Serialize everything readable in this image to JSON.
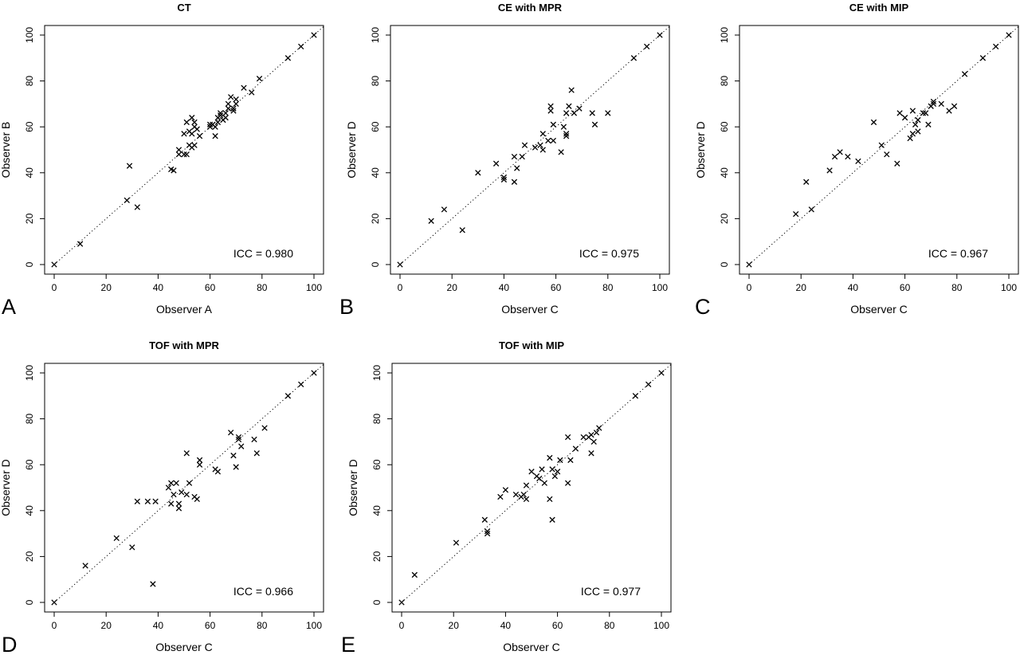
{
  "chart_data": [
    {
      "type": "scatter",
      "panel_letter": "A",
      "title": "CT",
      "xlabel": "Observer A",
      "ylabel": "Observer B",
      "xlim": [
        0,
        100
      ],
      "ylim": [
        0,
        100
      ],
      "xticks": [
        0,
        20,
        40,
        60,
        80,
        100
      ],
      "yticks": [
        0,
        20,
        40,
        60,
        80,
        100
      ],
      "marker": "x",
      "grid": false,
      "reference_line": "identity (dotted)",
      "annotation": "ICC =  0.980",
      "points": [
        [
          0,
          0
        ],
        [
          10,
          9
        ],
        [
          28,
          28
        ],
        [
          29,
          43
        ],
        [
          32,
          25
        ],
        [
          45,
          41.5
        ],
        [
          46,
          41
        ],
        [
          48,
          48
        ],
        [
          48,
          50
        ],
        [
          50,
          57
        ],
        [
          50,
          48
        ],
        [
          51,
          62
        ],
        [
          51,
          48
        ],
        [
          52,
          52
        ],
        [
          52,
          58
        ],
        [
          53,
          51
        ],
        [
          53,
          57
        ],
        [
          53,
          64
        ],
        [
          54,
          52
        ],
        [
          54,
          60
        ],
        [
          54,
          62
        ],
        [
          55,
          59
        ],
        [
          56,
          56
        ],
        [
          60,
          61
        ],
        [
          60,
          60
        ],
        [
          61,
          61
        ],
        [
          62,
          56
        ],
        [
          62,
          60
        ],
        [
          63,
          62
        ],
        [
          63,
          64
        ],
        [
          64,
          65
        ],
        [
          64,
          66
        ],
        [
          65,
          63
        ],
        [
          66,
          64
        ],
        [
          66,
          66
        ],
        [
          67,
          68
        ],
        [
          67,
          70
        ],
        [
          68,
          73
        ],
        [
          69,
          67
        ],
        [
          69,
          68
        ],
        [
          70,
          70
        ],
        [
          70,
          72
        ],
        [
          73,
          77
        ],
        [
          76,
          75
        ],
        [
          79,
          81
        ],
        [
          90,
          90
        ],
        [
          95,
          95
        ],
        [
          100,
          100
        ]
      ]
    },
    {
      "type": "scatter",
      "panel_letter": "B",
      "title": "CE with MPR",
      "xlabel": "Observer C",
      "ylabel": "Observer D",
      "xlim": [
        0,
        100
      ],
      "ylim": [
        0,
        100
      ],
      "xticks": [
        0,
        20,
        40,
        60,
        80,
        100
      ],
      "yticks": [
        0,
        20,
        40,
        60,
        80,
        100
      ],
      "marker": "x",
      "grid": false,
      "reference_line": "identity (dotted)",
      "annotation": "ICC =  0.975",
      "points": [
        [
          0,
          0
        ],
        [
          12,
          19
        ],
        [
          17,
          24
        ],
        [
          24,
          15
        ],
        [
          30,
          40
        ],
        [
          37,
          44
        ],
        [
          40,
          38
        ],
        [
          40,
          37
        ],
        [
          44,
          47
        ],
        [
          44,
          36
        ],
        [
          45,
          42
        ],
        [
          47,
          47
        ],
        [
          48,
          52
        ],
        [
          52,
          51
        ],
        [
          54,
          52
        ],
        [
          55,
          57
        ],
        [
          55,
          50
        ],
        [
          57,
          54
        ],
        [
          58,
          69
        ],
        [
          58,
          67
        ],
        [
          59,
          61
        ],
        [
          59,
          54
        ],
        [
          62,
          49
        ],
        [
          63,
          60
        ],
        [
          64,
          66
        ],
        [
          64,
          56
        ],
        [
          64,
          57
        ],
        [
          65,
          69
        ],
        [
          66,
          76
        ],
        [
          67,
          66
        ],
        [
          69,
          68
        ],
        [
          74,
          66
        ],
        [
          75,
          61
        ],
        [
          80,
          66
        ],
        [
          90,
          90
        ],
        [
          95,
          95
        ],
        [
          100,
          100
        ]
      ]
    },
    {
      "type": "scatter",
      "panel_letter": "C",
      "title": "CE with MIP",
      "xlabel": "Observer C",
      "ylabel": "Observer D",
      "xlim": [
        0,
        100
      ],
      "ylim": [
        0,
        100
      ],
      "xticks": [
        0,
        20,
        40,
        60,
        80,
        100
      ],
      "yticks": [
        0,
        20,
        40,
        60,
        80,
        100
      ],
      "marker": "x",
      "grid": false,
      "reference_line": "identity (dotted)",
      "annotation": "ICC =  0.967",
      "points": [
        [
          0,
          0
        ],
        [
          18,
          22
        ],
        [
          22,
          36
        ],
        [
          24,
          24
        ],
        [
          31,
          41
        ],
        [
          33,
          47
        ],
        [
          35,
          49
        ],
        [
          38,
          47
        ],
        [
          42,
          45
        ],
        [
          48,
          62
        ],
        [
          51,
          52
        ],
        [
          53,
          48
        ],
        [
          57,
          44
        ],
        [
          58,
          66
        ],
        [
          60,
          64
        ],
        [
          62,
          55
        ],
        [
          63,
          57
        ],
        [
          63,
          67
        ],
        [
          64,
          61
        ],
        [
          65,
          58
        ],
        [
          65,
          63
        ],
        [
          67,
          66
        ],
        [
          68,
          66
        ],
        [
          69,
          61
        ],
        [
          70,
          69
        ],
        [
          71,
          70
        ],
        [
          71,
          71
        ],
        [
          74,
          70
        ],
        [
          77,
          67
        ],
        [
          79,
          69
        ],
        [
          83,
          83
        ],
        [
          90,
          90
        ],
        [
          95,
          95
        ],
        [
          100,
          100
        ]
      ]
    },
    {
      "type": "scatter",
      "panel_letter": "D",
      "title": "TOF with MPR",
      "xlabel": "Observer C",
      "ylabel": "Observer D",
      "xlim": [
        0,
        100
      ],
      "ylim": [
        0,
        100
      ],
      "xticks": [
        0,
        20,
        40,
        60,
        80,
        100
      ],
      "yticks": [
        0,
        20,
        40,
        60,
        80,
        100
      ],
      "marker": "x",
      "grid": false,
      "reference_line": "identity (dotted)",
      "annotation": "ICC =  0.966",
      "points": [
        [
          0,
          0
        ],
        [
          12,
          16
        ],
        [
          24,
          28
        ],
        [
          30,
          24
        ],
        [
          32,
          44
        ],
        [
          36,
          44
        ],
        [
          38,
          8
        ],
        [
          39,
          44
        ],
        [
          44,
          50
        ],
        [
          45,
          43
        ],
        [
          45,
          52
        ],
        [
          46,
          47
        ],
        [
          47,
          52
        ],
        [
          48,
          43
        ],
        [
          48,
          41
        ],
        [
          49,
          48
        ],
        [
          51,
          65
        ],
        [
          51,
          47
        ],
        [
          52,
          52
        ],
        [
          54,
          46
        ],
        [
          55,
          45
        ],
        [
          56,
          60
        ],
        [
          56,
          62
        ],
        [
          62,
          58
        ],
        [
          63,
          57
        ],
        [
          68,
          74
        ],
        [
          69,
          64
        ],
        [
          70,
          59
        ],
        [
          71,
          72
        ],
        [
          71,
          71
        ],
        [
          72,
          68
        ],
        [
          77,
          71
        ],
        [
          78,
          65
        ],
        [
          81,
          76
        ],
        [
          90,
          90
        ],
        [
          95,
          95
        ],
        [
          100,
          100
        ]
      ]
    },
    {
      "type": "scatter",
      "panel_letter": "E",
      "title": "TOF with MIP",
      "xlabel": "Observer C",
      "ylabel": "Observer D",
      "xlim": [
        0,
        100
      ],
      "ylim": [
        0,
        100
      ],
      "xticks": [
        0,
        20,
        40,
        60,
        80,
        100
      ],
      "yticks": [
        0,
        20,
        40,
        60,
        80,
        100
      ],
      "marker": "x",
      "grid": false,
      "reference_line": "identity (dotted)",
      "annotation": "ICC =  0.977",
      "points": [
        [
          0,
          0
        ],
        [
          5,
          12
        ],
        [
          21,
          26
        ],
        [
          32,
          36
        ],
        [
          33,
          31
        ],
        [
          33,
          30
        ],
        [
          38,
          46
        ],
        [
          40,
          49
        ],
        [
          44,
          47
        ],
        [
          46,
          46
        ],
        [
          47,
          47
        ],
        [
          48,
          51
        ],
        [
          48,
          45
        ],
        [
          50,
          57
        ],
        [
          52,
          55
        ],
        [
          53,
          54
        ],
        [
          54,
          58
        ],
        [
          55,
          52
        ],
        [
          57,
          63
        ],
        [
          57,
          45
        ],
        [
          58,
          36
        ],
        [
          58,
          58
        ],
        [
          59,
          55
        ],
        [
          60,
          57
        ],
        [
          61,
          62
        ],
        [
          64,
          72
        ],
        [
          64,
          52
        ],
        [
          65,
          62
        ],
        [
          67,
          67
        ],
        [
          70,
          72
        ],
        [
          72,
          72
        ],
        [
          73,
          73
        ],
        [
          73,
          65
        ],
        [
          74,
          70
        ],
        [
          75,
          74
        ],
        [
          76,
          76
        ],
        [
          90,
          90
        ],
        [
          95,
          95
        ],
        [
          100,
          100
        ]
      ]
    }
  ]
}
